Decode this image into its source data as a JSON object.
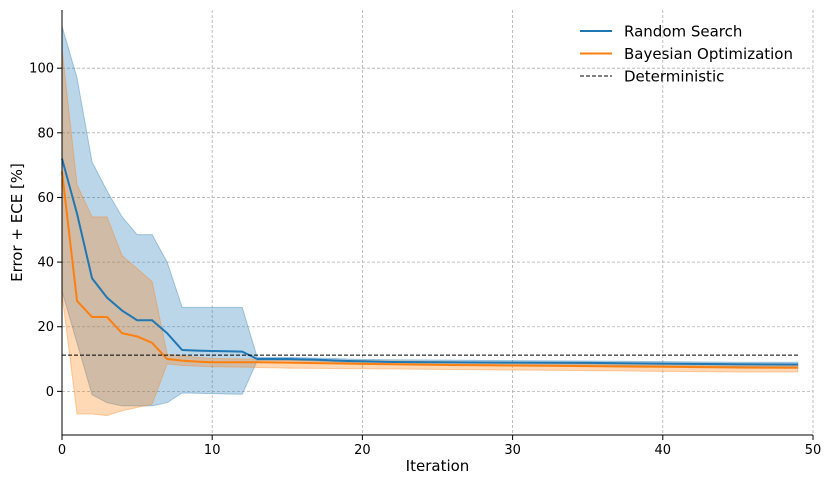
{
  "chart_data": {
    "type": "line",
    "xlabel": "Iteration",
    "ylabel": "Error + ECE [%]",
    "xlim": [
      0,
      50
    ],
    "ylim": [
      -13.5,
      118
    ],
    "xticks": [
      0,
      10,
      20,
      30,
      40,
      50
    ],
    "yticks": [
      0,
      20,
      40,
      60,
      80,
      100
    ],
    "grid": true,
    "legend_position": "top-right",
    "series": [
      {
        "name": "Random Search",
        "color": "#1f77b4",
        "x": [
          0,
          1,
          2,
          3,
          4,
          5,
          6,
          7,
          8,
          9,
          10,
          11,
          12,
          13,
          14,
          15,
          16,
          17,
          18,
          19,
          20,
          22,
          25,
          30,
          35,
          40,
          45,
          49
        ],
        "mean": [
          72,
          55,
          35,
          29,
          25,
          22,
          22,
          18,
          12.8,
          12.6,
          12.5,
          12.4,
          12.3,
          10,
          10,
          10,
          9.9,
          9.8,
          9.6,
          9.4,
          9.3,
          9.1,
          9,
          8.9,
          8.8,
          8.6,
          8.4,
          8.3
        ],
        "upper": [
          113,
          97,
          71,
          62,
          54,
          48.5,
          48.5,
          40,
          26,
          26,
          26,
          26,
          26,
          10.5,
          10.5,
          10.5,
          10.4,
          10.3,
          10.2,
          10,
          9.9,
          9.8,
          9.7,
          9.5,
          9.4,
          9.2,
          9,
          9
        ],
        "lower": [
          31,
          15,
          -1,
          -3.5,
          -4.5,
          -4.5,
          -4.5,
          -3.5,
          -0.5,
          -0.6,
          -0.7,
          -0.8,
          -0.9,
          9.5,
          9.5,
          9.5,
          9.4,
          9.3,
          9.1,
          8.9,
          8.7,
          8.5,
          8.3,
          8.2,
          8.1,
          7.9,
          7.7,
          7.6
        ]
      },
      {
        "name": "Bayesian Optimization",
        "color": "#ff7f0e",
        "x": [
          0,
          1,
          2,
          3,
          4,
          5,
          6,
          7,
          8,
          9,
          10,
          12,
          13,
          15,
          20,
          25,
          30,
          35,
          40,
          45,
          49
        ],
        "mean": [
          68,
          28,
          23,
          23,
          18,
          17,
          15,
          10,
          9.5,
          9.2,
          9,
          9,
          9,
          8.9,
          8.5,
          8.2,
          8,
          7.8,
          7.6,
          7.4,
          7.3
        ],
        "upper": [
          106,
          64,
          54,
          54,
          42,
          38,
          34,
          11.5,
          11,
          10.5,
          10.2,
          10,
          10,
          9.8,
          9.5,
          9.2,
          8.9,
          8.6,
          8.4,
          8.2,
          8
        ],
        "lower": [
          30,
          -7,
          -7,
          -7.5,
          -6,
          -5,
          -4,
          8.5,
          8,
          7.8,
          7.6,
          7.5,
          7.4,
          7.2,
          7,
          6.8,
          6.6,
          6.4,
          6.2,
          6,
          6
        ]
      }
    ],
    "reference": {
      "name": "Deterministic",
      "value": 11.2,
      "color": "#000000"
    }
  }
}
